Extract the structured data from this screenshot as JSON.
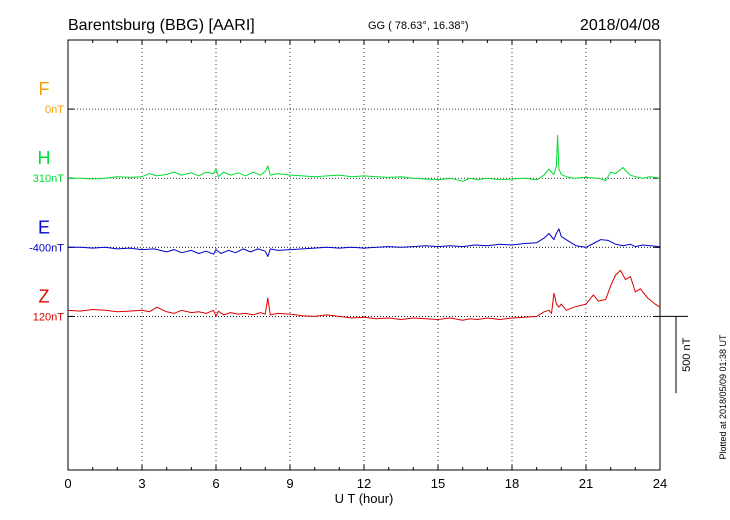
{
  "header": {
    "station": "Barentsburg (BBG)  [AARI]",
    "coords": "GG ( 78.63°,  16.38°)",
    "date": "2018/04/08"
  },
  "footer": {
    "plotted": "Plotted at 2018/05/09 01:38 UT"
  },
  "colors": {
    "F": "#f5a000",
    "H": "#00dd33",
    "E": "#0000cc",
    "Z": "#dd0000"
  },
  "chart_data": {
    "type": "line",
    "xlabel": "U T (hour)",
    "xlim": [
      0,
      24
    ],
    "xticks": [
      0,
      3,
      6,
      9,
      12,
      15,
      18,
      21,
      24
    ],
    "scale_bar": {
      "label": "500 nT",
      "value_nT": 500
    },
    "ylim_nT": [
      -1000,
      1800
    ],
    "components": [
      {
        "key": "F",
        "name": "F",
        "baseline_label": "0nT",
        "baseline_nT": 1350,
        "values": []
      },
      {
        "key": "H",
        "name": "H",
        "baseline_label": "310nT",
        "baseline_nT": 900,
        "x": [
          0,
          0.5,
          1,
          1.5,
          2,
          2.5,
          3,
          3.3,
          3.6,
          4,
          4.3,
          4.6,
          5,
          5.3,
          5.6,
          5.9,
          6.0,
          6.1,
          6.3,
          6.6,
          6.9,
          7.2,
          7.5,
          7.8,
          8.0,
          8.1,
          8.2,
          8.5,
          9,
          9.5,
          10,
          10.5,
          11,
          11.5,
          12,
          12.5,
          13,
          13.5,
          14,
          14.5,
          15,
          15.5,
          16,
          16.3,
          16.6,
          17,
          17.5,
          18,
          18.5,
          19,
          19.3,
          19.5,
          19.6,
          19.7,
          19.8,
          19.85,
          19.9,
          20.0,
          20.2,
          20.5,
          21,
          21.5,
          21.8,
          22,
          22.2,
          22.5,
          22.6,
          22.8,
          23,
          23.3,
          23.6,
          24
        ],
        "y": [
          0,
          0,
          -5,
          0,
          10,
          5,
          10,
          30,
          15,
          25,
          40,
          20,
          35,
          15,
          40,
          30,
          60,
          10,
          40,
          20,
          35,
          15,
          40,
          20,
          45,
          80,
          20,
          30,
          20,
          15,
          10,
          15,
          20,
          10,
          15,
          10,
          5,
          10,
          0,
          -5,
          -10,
          0,
          -20,
          0,
          -10,
          0,
          -10,
          -5,
          0,
          -10,
          20,
          60,
          40,
          25,
          80,
          280,
          60,
          25,
          10,
          0,
          5,
          0,
          -15,
          40,
          30,
          70,
          50,
          20,
          10,
          0,
          10,
          0
        ]
      },
      {
        "key": "E",
        "name": "E",
        "baseline_label": "-400nT",
        "baseline_nT": 450,
        "x": [
          0,
          0.5,
          1,
          1.5,
          2,
          2.5,
          3,
          3.5,
          4,
          4.3,
          4.6,
          5,
          5.3,
          5.6,
          5.9,
          6.0,
          6.2,
          6.5,
          6.8,
          7.1,
          7.4,
          7.7,
          8.0,
          8.1,
          8.2,
          8.5,
          9,
          9.5,
          10,
          10.5,
          11,
          11.5,
          12,
          12.5,
          13,
          13.5,
          14,
          14.5,
          15,
          15.5,
          16,
          16.5,
          17,
          17.5,
          18,
          18.5,
          19,
          19.3,
          19.5,
          19.7,
          19.8,
          19.9,
          20.0,
          20.3,
          20.6,
          21,
          21.3,
          21.6,
          21.9,
          22.2,
          22.5,
          22.8,
          23,
          23.3,
          23.6,
          24
        ],
        "y": [
          0,
          0,
          -5,
          0,
          -10,
          -5,
          -15,
          -10,
          -30,
          -15,
          -35,
          -20,
          -40,
          -25,
          -45,
          -15,
          -40,
          -20,
          -35,
          -10,
          -30,
          -10,
          -25,
          -60,
          -10,
          -20,
          -15,
          -10,
          -5,
          0,
          -5,
          0,
          -5,
          0,
          5,
          0,
          5,
          10,
          5,
          10,
          5,
          15,
          10,
          20,
          15,
          25,
          30,
          60,
          90,
          50,
          90,
          120,
          70,
          40,
          10,
          0,
          25,
          50,
          45,
          20,
          10,
          20,
          5,
          15,
          10,
          5
        ]
      },
      {
        "key": "Z",
        "name": "Z",
        "baseline_label": "120nT",
        "baseline_nT": 0,
        "x": [
          0,
          0.5,
          1,
          1.5,
          2,
          2.5,
          3,
          3.3,
          3.6,
          4,
          4.3,
          4.6,
          5,
          5.3,
          5.6,
          5.9,
          6.0,
          6.1,
          6.3,
          6.6,
          6.9,
          7.2,
          7.5,
          7.8,
          8.0,
          8.1,
          8.2,
          8.5,
          9,
          9.5,
          10,
          10.5,
          11,
          11.5,
          12,
          12.5,
          13,
          13.5,
          14,
          14.5,
          15,
          15.5,
          16,
          16.3,
          16.6,
          17,
          17.5,
          18,
          18.5,
          19,
          19.3,
          19.5,
          19.6,
          19.7,
          19.75,
          19.8,
          19.9,
          20.0,
          20.2,
          20.5,
          21,
          21.3,
          21.5,
          21.8,
          22,
          22.2,
          22.4,
          22.6,
          22.8,
          23,
          23.2,
          23.5,
          23.8,
          24
        ],
        "y": [
          40,
          35,
          45,
          40,
          30,
          35,
          40,
          30,
          60,
          30,
          20,
          40,
          25,
          30,
          20,
          40,
          0,
          35,
          10,
          25,
          15,
          20,
          10,
          25,
          15,
          120,
          10,
          20,
          15,
          5,
          0,
          10,
          0,
          -10,
          -5,
          -15,
          -10,
          -20,
          -10,
          -15,
          -20,
          -10,
          -25,
          -15,
          -20,
          -10,
          -20,
          -10,
          -5,
          0,
          30,
          40,
          20,
          150,
          120,
          80,
          60,
          80,
          40,
          60,
          80,
          140,
          100,
          110,
          200,
          270,
          300,
          240,
          260,
          160,
          180,
          120,
          80,
          60
        ]
      }
    ]
  }
}
